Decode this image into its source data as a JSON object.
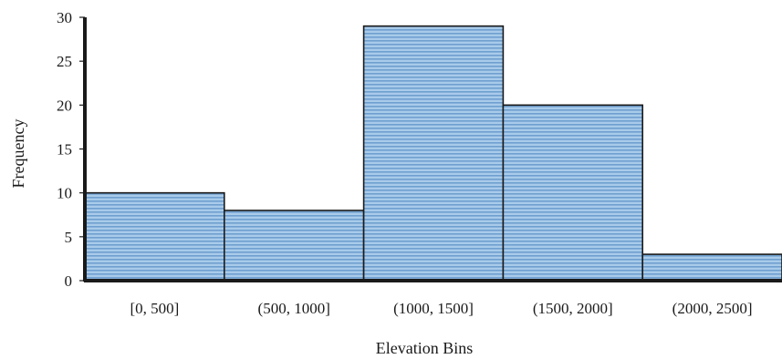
{
  "chart_data": {
    "type": "bar",
    "title": "",
    "xlabel": "Elevation Bins",
    "ylabel": "Frequency",
    "categories": [
      "[0, 500]",
      "(500, 1000]",
      "(1000, 1500]",
      "(1500, 2000]",
      "(2000, 2500]"
    ],
    "values": [
      10,
      8,
      29,
      20,
      3
    ],
    "ylim": [
      0,
      30
    ],
    "yticks": [
      0,
      5,
      10,
      15,
      20,
      25,
      30
    ],
    "grid": false,
    "legend": "none",
    "bar_fill": "#9dc3e6",
    "bar_pattern": "horizontal-lines",
    "bar_outline": "#1a1a1a"
  }
}
